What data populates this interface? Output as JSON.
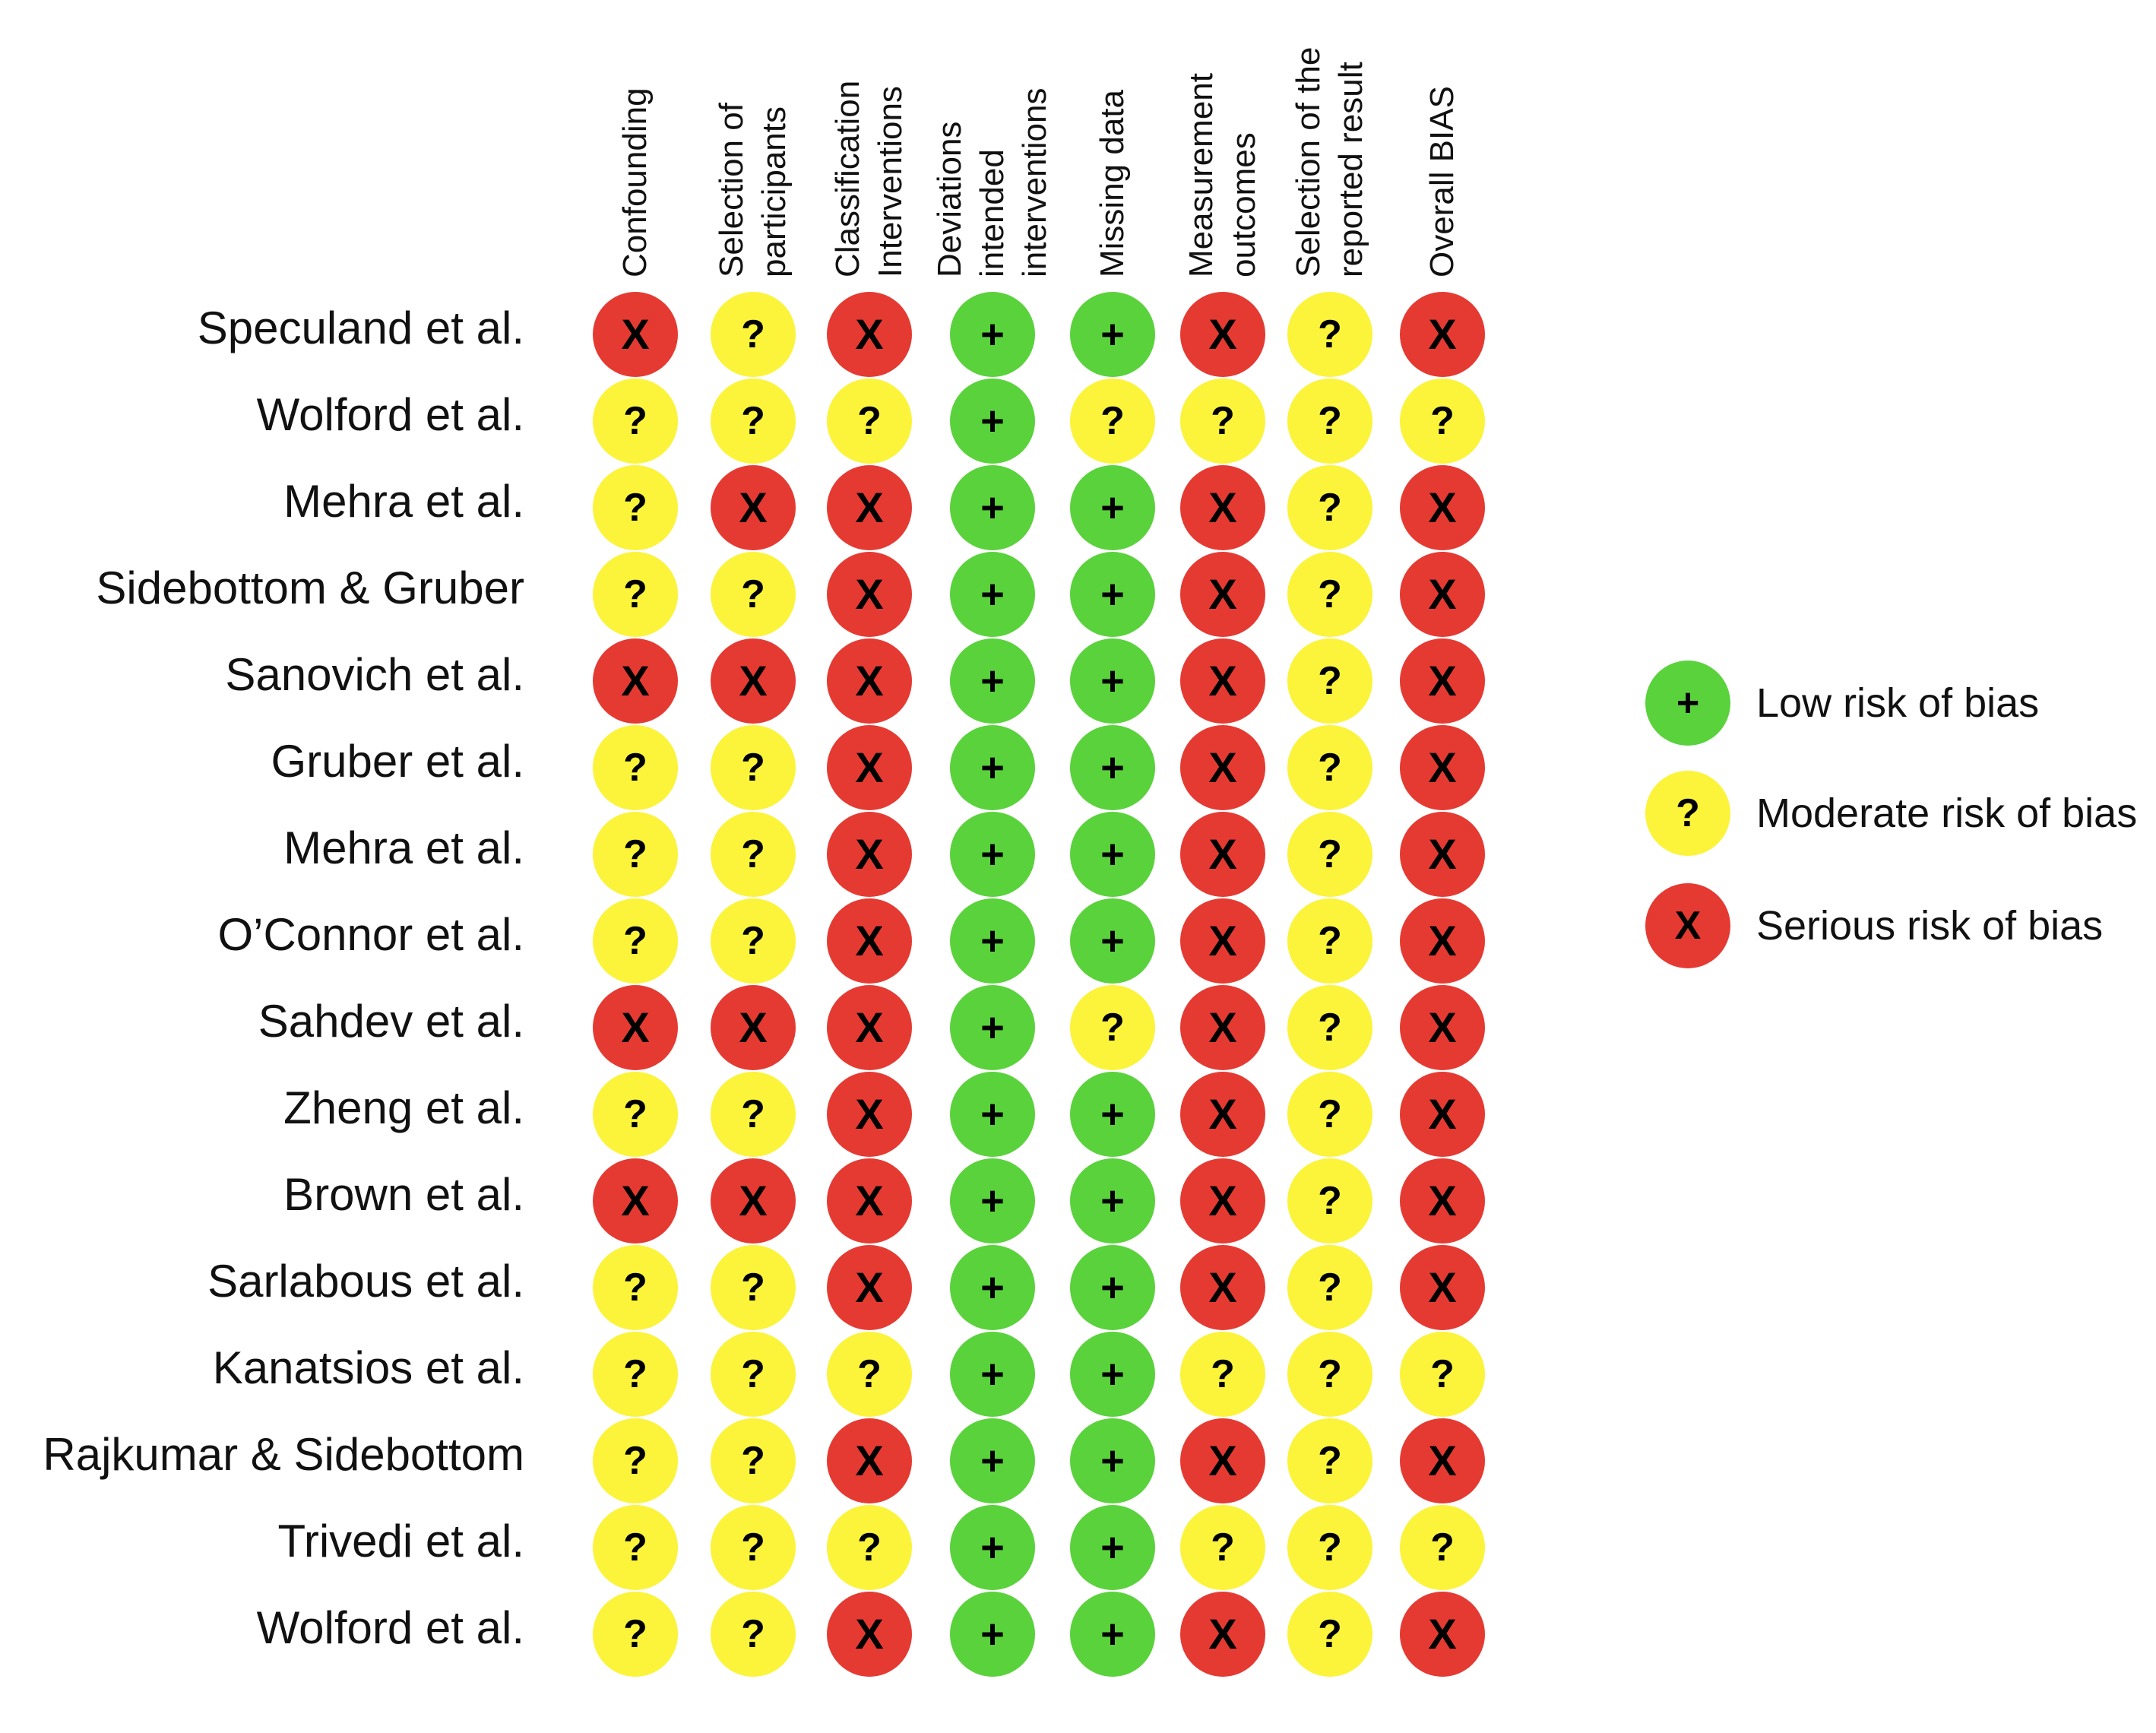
{
  "chart_data": {
    "type": "table",
    "columns": [
      [
        "Confounding"
      ],
      [
        "Selection of",
        "participants"
      ],
      [
        "Classification",
        "Interventions"
      ],
      [
        "Deviations",
        "intended",
        "interventions"
      ],
      [
        "Missing data"
      ],
      [
        "Measurement",
        "outcomes"
      ],
      [
        "Selection of the",
        "reported result"
      ],
      [
        "Overall BIAS"
      ]
    ],
    "rows": [
      {
        "study": "Speculand et al.",
        "ratings": [
          "serious",
          "moderate",
          "serious",
          "low",
          "low",
          "serious",
          "moderate",
          "serious"
        ]
      },
      {
        "study": "Wolford et al.",
        "ratings": [
          "moderate",
          "moderate",
          "moderate",
          "low",
          "moderate",
          "moderate",
          "moderate",
          "moderate"
        ]
      },
      {
        "study": "Mehra et al.",
        "ratings": [
          "moderate",
          "serious",
          "serious",
          "low",
          "low",
          "serious",
          "moderate",
          "serious"
        ]
      },
      {
        "study": "Sidebottom & Gruber",
        "ratings": [
          "moderate",
          "moderate",
          "serious",
          "low",
          "low",
          "serious",
          "moderate",
          "serious"
        ]
      },
      {
        "study": "Sanovich et al.",
        "ratings": [
          "serious",
          "serious",
          "serious",
          "low",
          "low",
          "serious",
          "moderate",
          "serious"
        ]
      },
      {
        "study": "Gruber et al.",
        "ratings": [
          "moderate",
          "moderate",
          "serious",
          "low",
          "low",
          "serious",
          "moderate",
          "serious"
        ]
      },
      {
        "study": "Mehra et al.",
        "ratings": [
          "moderate",
          "moderate",
          "serious",
          "low",
          "low",
          "serious",
          "moderate",
          "serious"
        ]
      },
      {
        "study": "O’Connor et al.",
        "ratings": [
          "moderate",
          "moderate",
          "serious",
          "low",
          "low",
          "serious",
          "moderate",
          "serious"
        ]
      },
      {
        "study": "Sahdev et al.",
        "ratings": [
          "serious",
          "serious",
          "serious",
          "low",
          "moderate",
          "serious",
          "moderate",
          "serious"
        ]
      },
      {
        "study": "Zheng et al.",
        "ratings": [
          "moderate",
          "moderate",
          "serious",
          "low",
          "low",
          "serious",
          "moderate",
          "serious"
        ]
      },
      {
        "study": "Brown et al.",
        "ratings": [
          "serious",
          "serious",
          "serious",
          "low",
          "low",
          "serious",
          "moderate",
          "serious"
        ]
      },
      {
        "study": "Sarlabous et al.",
        "ratings": [
          "moderate",
          "moderate",
          "serious",
          "low",
          "low",
          "serious",
          "moderate",
          "serious"
        ]
      },
      {
        "study": "Kanatsios et al.",
        "ratings": [
          "moderate",
          "moderate",
          "moderate",
          "low",
          "low",
          "moderate",
          "moderate",
          "moderate"
        ]
      },
      {
        "study": "Rajkumar & Sidebottom",
        "ratings": [
          "moderate",
          "moderate",
          "serious",
          "low",
          "low",
          "serious",
          "moderate",
          "serious"
        ]
      },
      {
        "study": "Trivedi et al.",
        "ratings": [
          "moderate",
          "moderate",
          "moderate",
          "low",
          "low",
          "moderate",
          "moderate",
          "moderate"
        ]
      },
      {
        "study": "Wolford et al.",
        "ratings": [
          "moderate",
          "moderate",
          "serious",
          "low",
          "low",
          "serious",
          "moderate",
          "serious"
        ]
      }
    ],
    "categories": {
      "low": {
        "symbol": "+",
        "color": "#5ad23c",
        "label": "Low risk of bias"
      },
      "moderate": {
        "symbol": "?",
        "color": "#fbf43a",
        "label": "Moderate risk of bias"
      },
      "serious": {
        "symbol": "X",
        "color": "#e53a32",
        "label": "Serious risk of bias"
      }
    },
    "legend_placement": "right"
  }
}
